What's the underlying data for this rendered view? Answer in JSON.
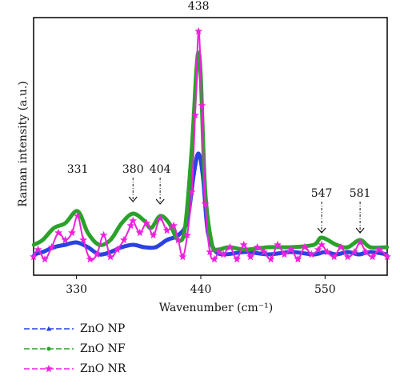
{
  "chart_data": {
    "type": "line",
    "xlabel": "Wavenumber (cm⁻¹)",
    "ylabel": "Raman intensity (a.u.)",
    "xlim": [
      292,
      605
    ],
    "ylim": [
      0,
      1
    ],
    "x_ticks": [
      330,
      440,
      550
    ],
    "x_tick_labels": [
      "330",
      "440",
      "550"
    ],
    "grid": false,
    "legend_position": "below-left",
    "series": [
      {
        "name": "ZnO NP",
        "color": "#2a42e0",
        "marker": "triangle",
        "x": [
          292,
          300,
          310,
          320,
          330,
          340,
          350,
          360,
          370,
          380,
          390,
          400,
          410,
          420,
          428,
          434,
          438,
          442,
          446,
          452,
          460,
          480,
          500,
          520,
          540,
          550,
          560,
          570,
          580,
          590,
          605
        ],
        "y": [
          0.04,
          0.05,
          0.07,
          0.08,
          0.09,
          0.07,
          0.04,
          0.05,
          0.07,
          0.08,
          0.07,
          0.07,
          0.1,
          0.12,
          0.18,
          0.38,
          0.46,
          0.36,
          0.14,
          0.06,
          0.04,
          0.05,
          0.04,
          0.05,
          0.04,
          0.05,
          0.04,
          0.05,
          0.04,
          0.05,
          0.04
        ]
      },
      {
        "name": "ZnO NF",
        "color": "#2aa22a",
        "marker": "circle",
        "x": [
          292,
          300,
          310,
          320,
          331,
          340,
          350,
          360,
          370,
          380,
          390,
          396,
          404,
          412,
          420,
          426,
          432,
          436,
          438,
          440,
          444,
          450,
          455,
          465,
          480,
          500,
          520,
          540,
          547,
          560,
          570,
          581,
          590,
          605
        ],
        "y": [
          0.08,
          0.1,
          0.15,
          0.17,
          0.22,
          0.13,
          0.08,
          0.1,
          0.17,
          0.21,
          0.18,
          0.15,
          0.2,
          0.17,
          0.1,
          0.15,
          0.48,
          0.8,
          0.88,
          0.78,
          0.3,
          0.08,
          0.06,
          0.07,
          0.06,
          0.07,
          0.07,
          0.08,
          0.11,
          0.08,
          0.07,
          0.1,
          0.07,
          0.07
        ]
      },
      {
        "name": "ZnO NR",
        "color": "#ee20dd",
        "marker": "star",
        "x": [
          292,
          296,
          302,
          308,
          314,
          320,
          326,
          331,
          336,
          342,
          348,
          354,
          360,
          366,
          372,
          378,
          380,
          386,
          392,
          398,
          404,
          410,
          416,
          420,
          424,
          428,
          432,
          435,
          438,
          441,
          444,
          448,
          452,
          456,
          460,
          466,
          472,
          478,
          484,
          490,
          496,
          502,
          508,
          514,
          520,
          526,
          532,
          538,
          544,
          547,
          552,
          558,
          564,
          570,
          576,
          581,
          586,
          592,
          598,
          605
        ],
        "y": [
          0.03,
          0.06,
          0.02,
          0.07,
          0.13,
          0.1,
          0.13,
          0.2,
          0.1,
          0.02,
          0.04,
          0.12,
          0.03,
          0.06,
          0.1,
          0.16,
          0.18,
          0.13,
          0.17,
          0.12,
          0.19,
          0.14,
          0.16,
          0.1,
          0.03,
          0.12,
          0.3,
          0.62,
          0.97,
          0.66,
          0.25,
          0.05,
          0.02,
          0.05,
          0.04,
          0.07,
          0.02,
          0.08,
          0.03,
          0.07,
          0.05,
          0.02,
          0.08,
          0.04,
          0.06,
          0.02,
          0.07,
          0.04,
          0.06,
          0.08,
          0.05,
          0.03,
          0.07,
          0.03,
          0.05,
          0.09,
          0.05,
          0.03,
          0.06,
          0.03
        ]
      }
    ],
    "annotations": [
      {
        "text": "331",
        "x": 331,
        "label_y": 0.38,
        "arrow": false
      },
      {
        "text": "380",
        "x": 380,
        "label_y": 0.38,
        "arrow": true,
        "arrow_to": 0.26
      },
      {
        "text": "404",
        "x": 404,
        "label_y": 0.38,
        "arrow": true,
        "arrow_to": 0.25
      },
      {
        "text": "438",
        "x": 438,
        "label_y": 1.06,
        "arrow": false
      },
      {
        "text": "547",
        "x": 547,
        "label_y": 0.28,
        "arrow": true,
        "arrow_to": 0.13
      },
      {
        "text": "581",
        "x": 581,
        "label_y": 0.28,
        "arrow": true,
        "arrow_to": 0.13
      }
    ]
  }
}
